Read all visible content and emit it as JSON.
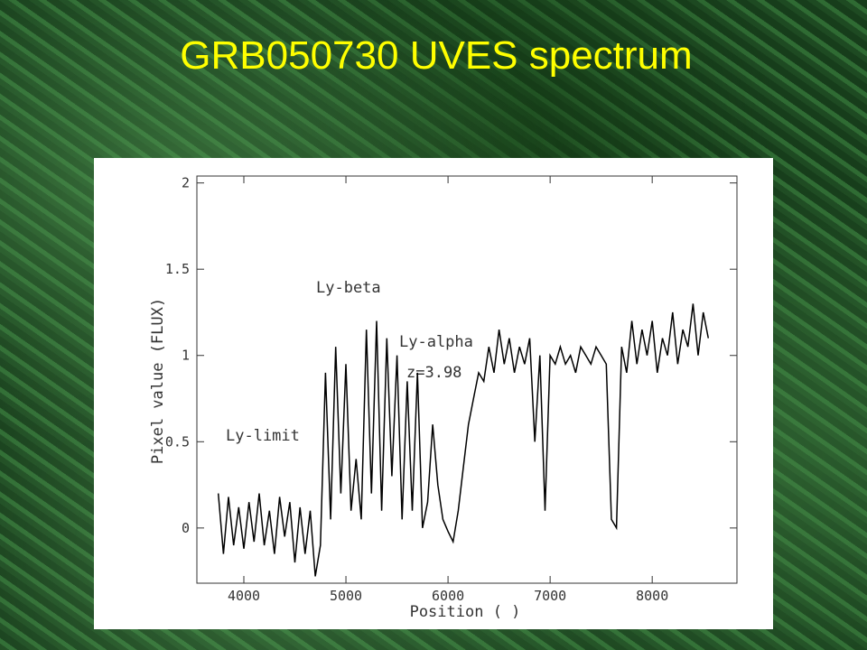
{
  "chart_data": {
    "type": "line",
    "title": "GRB050730 UVES spectrum",
    "xlabel": "Position ( )",
    "ylabel": "Pixel value (FLUX)",
    "annotations": [
      "Ly-limit",
      "Ly-beta",
      "Ly-alpha",
      "z=3.98"
    ],
    "xlim": [
      3540,
      8830
    ],
    "ylim": [
      -0.32,
      2.04
    ],
    "xticks": [
      4000,
      5000,
      6000,
      7000,
      8000
    ],
    "yticks": [
      0,
      0.5,
      1,
      1.5,
      2
    ],
    "color": "#000000",
    "x": [
      3750,
      3800,
      3850,
      3900,
      3950,
      4000,
      4050,
      4100,
      4150,
      4200,
      4250,
      4300,
      4350,
      4400,
      4450,
      4500,
      4550,
      4600,
      4650,
      4700,
      4750,
      4800,
      4850,
      4900,
      4950,
      5000,
      5050,
      5100,
      5150,
      5200,
      5250,
      5300,
      5350,
      5400,
      5450,
      5500,
      5550,
      5600,
      5650,
      5700,
      5750,
      5800,
      5850,
      5900,
      5950,
      6000,
      6050,
      6100,
      6150,
      6200,
      6250,
      6300,
      6350,
      6400,
      6450,
      6500,
      6550,
      6600,
      6650,
      6700,
      6750,
      6800,
      6850,
      6900,
      6950,
      7000,
      7050,
      7100,
      7150,
      7200,
      7250,
      7300,
      7350,
      7400,
      7450,
      7500,
      7550,
      7600,
      7650,
      7700,
      7750,
      7800,
      7850,
      7900,
      7950,
      8000,
      8050,
      8100,
      8150,
      8200,
      8250,
      8300,
      8350,
      8400,
      8450,
      8500,
      8550
    ],
    "values": [
      0.2,
      -0.15,
      0.18,
      -0.1,
      0.12,
      -0.12,
      0.15,
      -0.08,
      0.2,
      -0.1,
      0.1,
      -0.15,
      0.18,
      -0.05,
      0.15,
      -0.2,
      0.12,
      -0.15,
      0.1,
      -0.28,
      -0.1,
      0.9,
      0.05,
      1.05,
      0.2,
      0.95,
      0.1,
      0.4,
      0.05,
      1.15,
      0.2,
      1.2,
      0.1,
      1.1,
      0.3,
      1.0,
      0.05,
      0.85,
      0.1,
      0.9,
      0.0,
      0.15,
      0.6,
      0.25,
      0.05,
      -0.02,
      -0.08,
      0.1,
      0.35,
      0.6,
      0.75,
      0.9,
      0.85,
      1.05,
      0.9,
      1.15,
      0.95,
      1.1,
      0.9,
      1.05,
      0.95,
      1.1,
      0.5,
      1.0,
      0.1,
      1.0,
      0.95,
      1.05,
      0.95,
      1.0,
      0.9,
      1.05,
      1.0,
      0.95,
      1.05,
      1.0,
      0.95,
      0.05,
      0.0,
      1.05,
      0.9,
      1.2,
      0.95,
      1.15,
      1.0,
      1.2,
      0.9,
      1.1,
      1.0,
      1.25,
      0.95,
      1.15,
      1.05,
      1.3,
      1.0,
      1.25,
      1.1
    ]
  }
}
